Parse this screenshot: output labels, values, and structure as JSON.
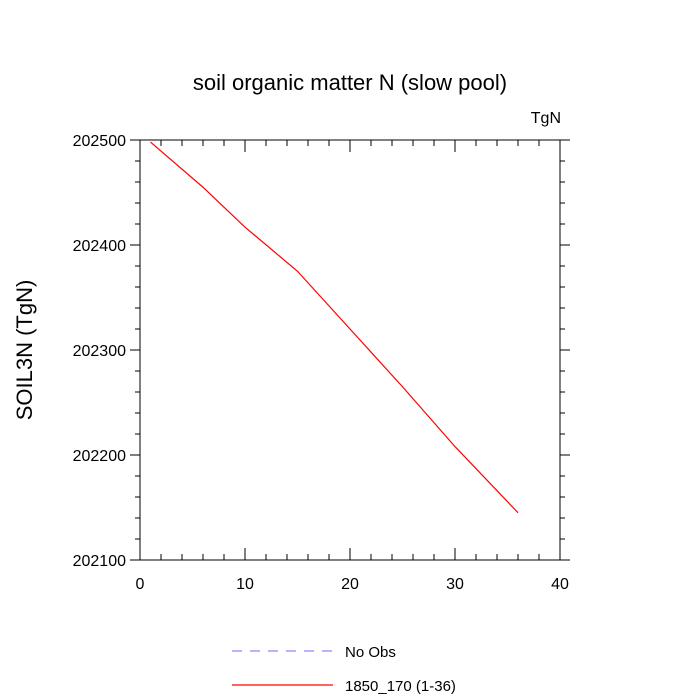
{
  "chart_data": {
    "type": "line",
    "title": "soil organic matter N (slow pool)",
    "units_label": "TgN",
    "ylabel": "SOIL3N  (TgN)",
    "xlabel": "",
    "xlim": [
      0,
      40
    ],
    "ylim": [
      202100,
      202500
    ],
    "xticks": [
      0,
      10,
      20,
      30,
      40
    ],
    "yticks": [
      202100,
      202200,
      202300,
      202400,
      202500
    ],
    "grid": false,
    "legend_position": "bottom",
    "series": [
      {
        "name": "No Obs",
        "color": "#8888ff",
        "style": "dashed",
        "x": [],
        "y": []
      },
      {
        "name": "1850_170 (1-36)",
        "color": "#ff0000",
        "style": "solid",
        "x": [
          1,
          6,
          10,
          15,
          20,
          25,
          30,
          36
        ],
        "y": [
          202498,
          202455,
          202417,
          202375,
          202320,
          202265,
          202208,
          202145
        ]
      }
    ]
  }
}
